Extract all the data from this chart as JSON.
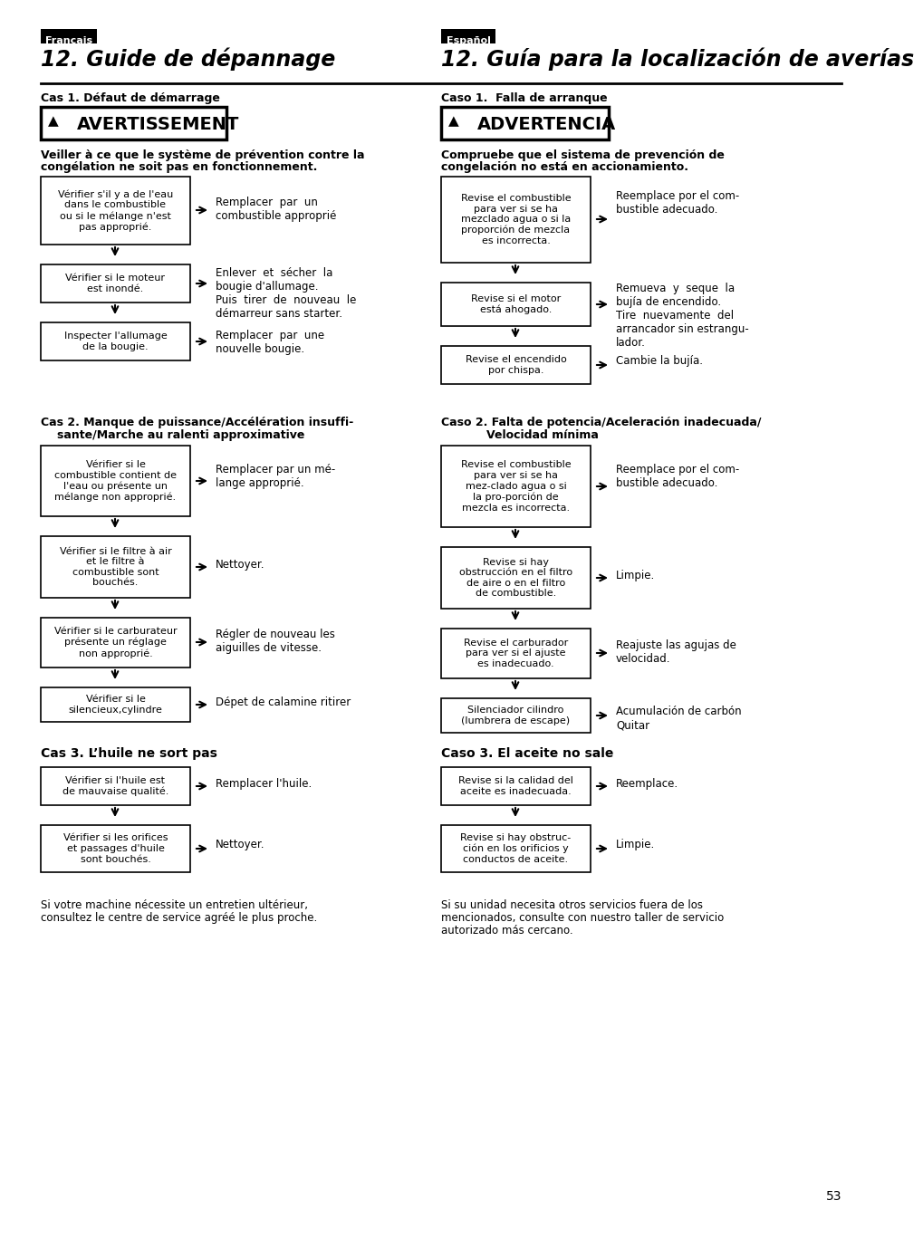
{
  "page_bg": "#ffffff",
  "page_number": "53",
  "left_lang": "Français",
  "right_lang": "Español",
  "left_title": "12. Guide de dépannage",
  "right_title": "12. Guía para la localización de averías",
  "left_case1": "Cas 1. Défaut de démarrage",
  "right_case1": "Caso 1.  Falla de arranque",
  "left_warn": "AVERTISSEMENT",
  "right_warn": "ADVERTENCIA",
  "left_warn_line1": "Veiller à ce que le système de prévention contre la",
  "left_warn_line2": "congélation ne soit pas en fonctionnement.",
  "right_warn_line1": "Compruebe que el sistema de prevención de",
  "right_warn_line2": "congelación no está en accionamiento.",
  "left_case2_line1": "Cas 2. Manque de puissance/Accélération insuffi-",
  "left_case2_line2": "sante/Marche au ralenti approximative",
  "right_case2_line1": "Caso 2. Falta de potencia/Aceleración inadecuada/",
  "right_case2_line2": "Velocidad mínima",
  "left_case3": "Cas 3. L’huile ne sort pas",
  "right_case3": "Caso 3. El aceite no sale",
  "left_footer_line1": "Si votre machine nécessite un entretien ultérieur,",
  "left_footer_line2": "consultez le centre de service agréé le plus proche.",
  "right_footer_line1": "Si su unidad necesita otros servicios fuera de los",
  "right_footer_line2": "mencionados, consulte con nuestro taller de servicio",
  "right_footer_line3": "autorizado más cercano."
}
